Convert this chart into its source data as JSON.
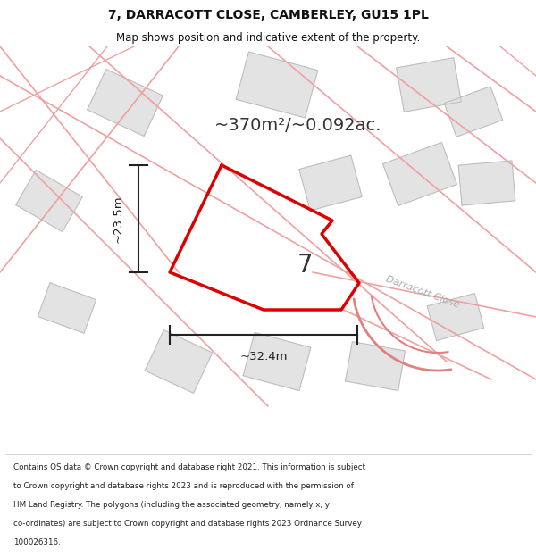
{
  "title": "7, DARRACOTT CLOSE, CAMBERLEY, GU15 1PL",
  "subtitle": "Map shows position and indicative extent of the property.",
  "area_text": "~370m²/~0.092ac.",
  "plot_number": "7",
  "dim_width": "~32.4m",
  "dim_height": "~23.5m",
  "road_label": "Darracott Close",
  "footer_lines": [
    "Contains OS data © Crown copyright and database right 2021. This information is subject",
    "to Crown copyright and database rights 2023 and is reproduced with the permission of",
    "HM Land Registry. The polygons (including the associated geometry, namely x, y",
    "co-ordinates) are subject to Crown copyright and database rights 2023 Ordnance Survey",
    "100026316."
  ],
  "bg_color": "#f8f8f8",
  "map_bg": "#ffffff",
  "plot_edge_color": "#dd0000",
  "parcel_fill": "#e0e0e0",
  "parcel_edge": "#b8b8b8",
  "road_line_color": "#f0a0a0",
  "road_line_color2": "#e08080",
  "dim_color": "#222222",
  "title_color": "#111111",
  "road_label_color": "#aaaaaa"
}
